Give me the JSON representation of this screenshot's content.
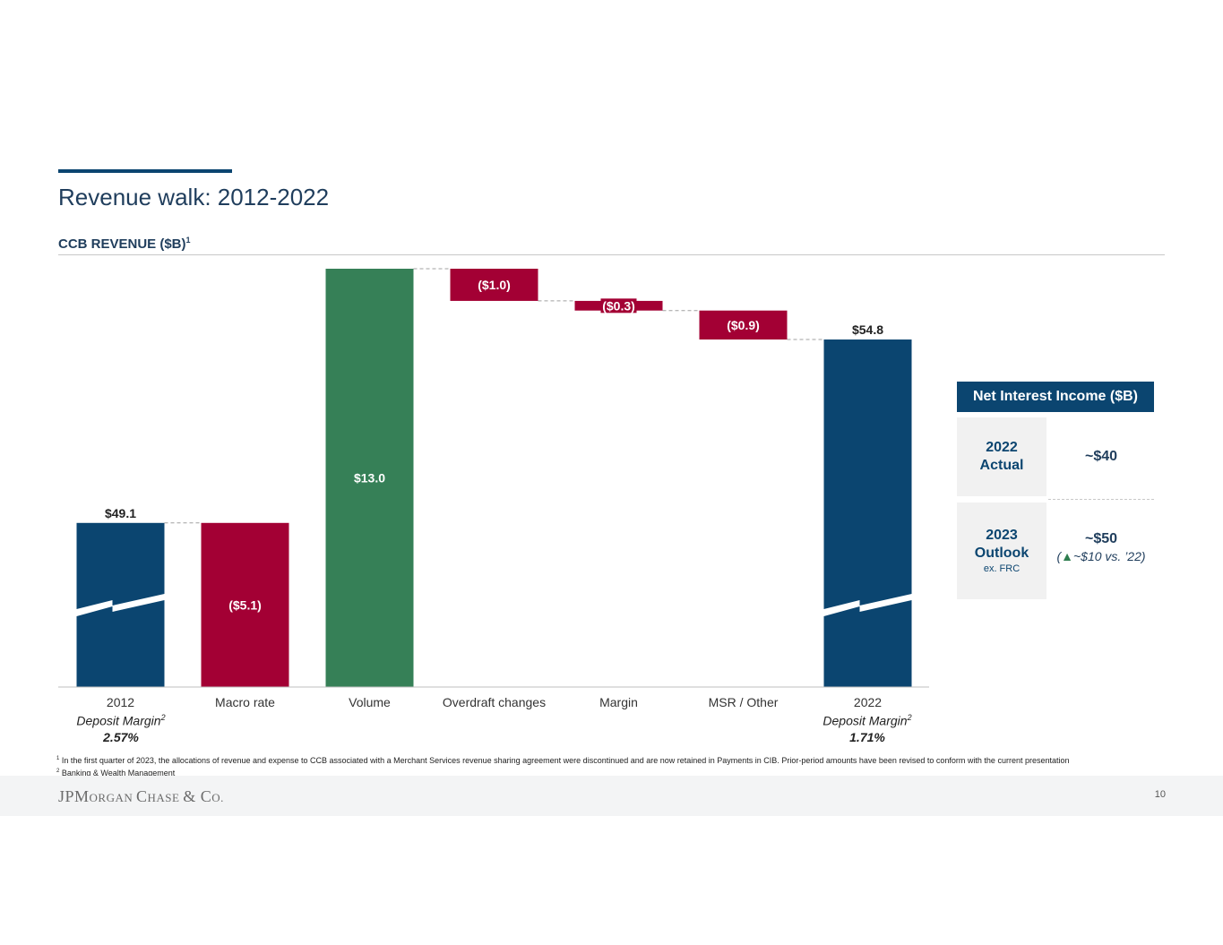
{
  "page": {
    "title": "Revenue walk: 2012-2022",
    "subtitle": "CCB REVENUE ($B)",
    "subtitle_sup": "1",
    "page_number": "10",
    "logo_text": "JPMorgan Chase & Co.",
    "colors": {
      "navy": "#0b4570",
      "red": "#a30034",
      "green": "#368057"
    }
  },
  "chart_data": {
    "type": "bar",
    "subtype": "waterfall",
    "title": "CCB REVENUE ($B)",
    "categories": [
      "2012",
      "Macro rate",
      "Volume",
      "Overdraft changes",
      "Margin",
      "MSR / Other",
      "2022"
    ],
    "values": [
      49.1,
      -5.1,
      13.0,
      -1.0,
      -0.3,
      -0.9,
      54.8
    ],
    "labels": [
      "$49.1",
      "($5.1)",
      "$13.0",
      "($1.0)",
      "($0.3)",
      "($0.9)",
      "$54.8"
    ],
    "kinds": [
      "total",
      "decrease",
      "increase",
      "decrease",
      "decrease",
      "decrease",
      "total"
    ],
    "axis_break": true,
    "ylim": [
      44.0,
      57.0
    ]
  },
  "deposit_margin": {
    "label": "Deposit Margin",
    "sup": "2",
    "left_value": "2.57%",
    "right_value": "1.71%"
  },
  "nii_table": {
    "header": "Net Interest Income ($B)",
    "rows": [
      {
        "year": "2022",
        "label": "Actual",
        "sublabel": "",
        "value": "~$40",
        "note_prefix": "",
        "note_suffix": ""
      },
      {
        "year": "2023",
        "label": "Outlook",
        "sublabel": "ex. FRC",
        "value": "~$50",
        "note_prefix": "(",
        "note_suffix": "~$10 vs. ’22)"
      }
    ],
    "triangle": "▲"
  },
  "footnotes": [
    {
      "sup": "1",
      "text": "In the first quarter of 2023, the allocations of revenue and expense to CCB associated with a Merchant Services revenue sharing agreement were discontinued and are now retained in Payments in CIB. Prior-period amounts have been revised to conform with the current presentation"
    },
    {
      "sup": "2",
      "text": "Banking & Wealth Management"
    }
  ]
}
